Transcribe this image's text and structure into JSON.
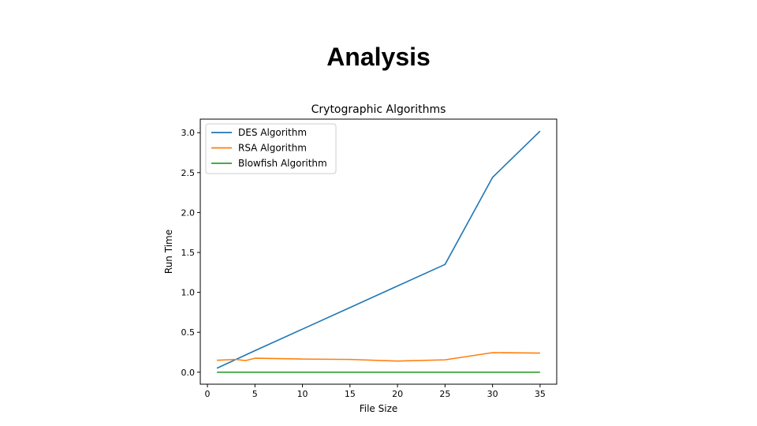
{
  "slide": {
    "title": "Analysis"
  },
  "chart_data": {
    "type": "line",
    "title": "Crytographic Algorithms",
    "xlabel": "File Size",
    "ylabel": "Run Time",
    "xlim": [
      -0.75,
      36.75
    ],
    "ylim": [
      -0.15,
      3.17
    ],
    "xticks": [
      0,
      5,
      10,
      15,
      20,
      25,
      30,
      35
    ],
    "xtick_labels": [
      "0",
      "5",
      "10",
      "15",
      "20",
      "25",
      "30",
      "35"
    ],
    "yticks": [
      0.0,
      0.5,
      1.0,
      1.5,
      2.0,
      2.5,
      3.0
    ],
    "ytick_labels": [
      "0.0",
      "0.5",
      "1.0",
      "1.5",
      "2.0",
      "2.5",
      "3.0"
    ],
    "grid": false,
    "legend_position": "upper-left",
    "series": [
      {
        "name": "DES Algorithm",
        "color": "#1f77b4",
        "x": [
          1,
          5,
          10,
          15,
          20,
          25,
          30,
          35
        ],
        "y": [
          0.05,
          0.27,
          0.54,
          0.81,
          1.08,
          1.35,
          2.44,
          3.02
        ]
      },
      {
        "name": "RSA Algorithm",
        "color": "#ff7f0e",
        "x": [
          1,
          3,
          4,
          5,
          10,
          15,
          20,
          25,
          30,
          35
        ],
        "y": [
          0.15,
          0.16,
          0.145,
          0.175,
          0.165,
          0.16,
          0.14,
          0.155,
          0.245,
          0.24
        ]
      },
      {
        "name": "Blowfish Algorithm",
        "color": "#2ca02c",
        "x": [
          1,
          5,
          10,
          15,
          20,
          25,
          30,
          35
        ],
        "y": [
          0.0,
          0.0,
          0.0,
          0.0,
          0.0,
          0.0,
          0.0,
          0.0
        ]
      }
    ]
  }
}
